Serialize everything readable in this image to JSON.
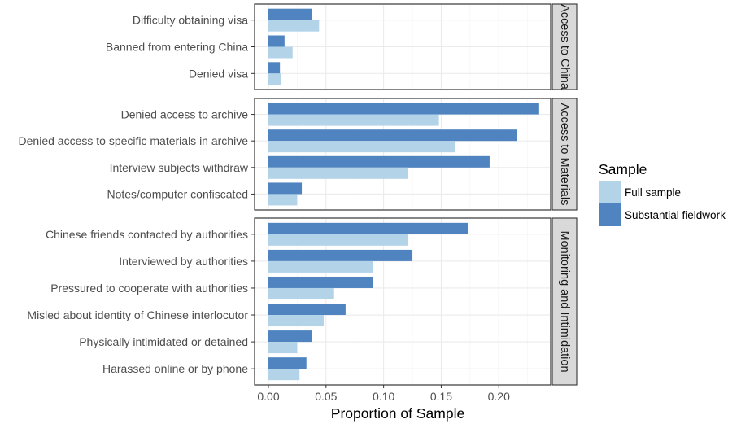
{
  "chart_data": {
    "type": "bar",
    "orientation": "horizontal",
    "xlabel": "Proportion of Sample",
    "xlim": [
      -0.012,
      0.245
    ],
    "xticks": [
      {
        "value": 0.0,
        "label": "0.00"
      },
      {
        "value": 0.05,
        "label": "0.05"
      },
      {
        "value": 0.1,
        "label": "0.10"
      },
      {
        "value": 0.15,
        "label": "0.15"
      },
      {
        "value": 0.2,
        "label": "0.20"
      }
    ],
    "legend": {
      "title": "Sample",
      "placement": "right",
      "entries": [
        {
          "key": "full",
          "label": "Full sample",
          "color": "#b3d4e8"
        },
        {
          "key": "sub",
          "label": "Substantial fieldwork",
          "color": "#4f84c0"
        }
      ]
    },
    "facets": [
      {
        "strip": "Access to China",
        "categories": [
          "Difficulty obtaining visa",
          "Banned from entering China",
          "Denied visa"
        ],
        "full": [
          0.044,
          0.021,
          0.011
        ],
        "sub": [
          0.038,
          0.014,
          0.01
        ]
      },
      {
        "strip": "Access to Materials",
        "categories": [
          "Denied access to archive",
          "Denied access to specific materials in archive",
          "Interview subjects withdraw",
          "Notes/computer confiscated"
        ],
        "full": [
          0.148,
          0.162,
          0.121,
          0.025
        ],
        "sub": [
          0.235,
          0.216,
          0.192,
          0.029
        ]
      },
      {
        "strip": "Monitoring and Intimidation",
        "categories": [
          "Chinese friends contacted by authorities",
          "Interviewed by authorities",
          "Pressured to cooperate with authorities",
          "Misled about identity of Chinese interlocutor",
          "Physically intimidated or detained",
          "Harassed online or by phone"
        ],
        "full": [
          0.121,
          0.091,
          0.057,
          0.048,
          0.025,
          0.027
        ],
        "sub": [
          0.173,
          0.125,
          0.091,
          0.067,
          0.038,
          0.033
        ]
      }
    ]
  }
}
